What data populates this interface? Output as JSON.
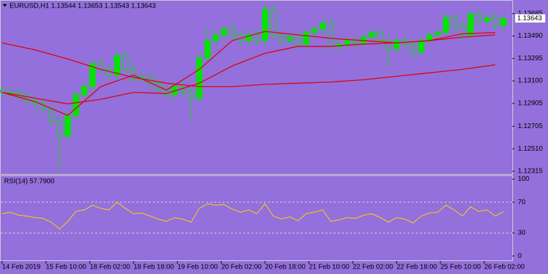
{
  "chart_data": [
    {
      "type": "candlestick",
      "title": "EURUSD,H1  1.13544 1.13653 1.13543 1.13643",
      "x": [
        0,
        3,
        6,
        9,
        12,
        15,
        18,
        21,
        24,
        27,
        30,
        33,
        36,
        39,
        42,
        45,
        48,
        51,
        54,
        57,
        60,
        63,
        66,
        69,
        72,
        75,
        78,
        81,
        84,
        87,
        90,
        93,
        96,
        99,
        102,
        105,
        108,
        111,
        114,
        117,
        120,
        123,
        126,
        129,
        132,
        135,
        138,
        141,
        144,
        147,
        150,
        153,
        156,
        159,
        162,
        165,
        168,
        171,
        174,
        177,
        180,
        183
      ],
      "open": [
        1.1302,
        1.13,
        1.13,
        1.1297,
        1.1293,
        1.129,
        1.1285,
        1.1275,
        1.1262,
        1.128,
        1.1298,
        1.1305,
        1.1325,
        1.132,
        1.1315,
        1.1332,
        1.132,
        1.1312,
        1.1313,
        1.1308,
        1.1303,
        1.1298,
        1.1305,
        1.13,
        1.1295,
        1.133,
        1.1345,
        1.135,
        1.1355,
        1.135,
        1.1345,
        1.135,
        1.1345,
        1.1372,
        1.135,
        1.1345,
        1.1348,
        1.1342,
        1.1352,
        1.1355,
        1.136,
        1.134,
        1.1342,
        1.1345,
        1.1343,
        1.1348,
        1.1352,
        1.1345,
        1.1338,
        1.1345,
        1.1342,
        1.1335,
        1.1345,
        1.135,
        1.1352,
        1.1365,
        1.1358,
        1.135,
        1.1368,
        1.1362,
        1.1365,
        1.1358
      ],
      "high": [
        1.1306,
        1.1304,
        1.1304,
        1.1301,
        1.1297,
        1.1294,
        1.1289,
        1.1279,
        1.1284,
        1.1302,
        1.1309,
        1.1329,
        1.1329,
        1.1324,
        1.1336,
        1.1336,
        1.1324,
        1.1317,
        1.1317,
        1.1312,
        1.1307,
        1.1309,
        1.1309,
        1.1304,
        1.1334,
        1.1356,
        1.1354,
        1.1359,
        1.1359,
        1.1354,
        1.1354,
        1.1354,
        1.1378,
        1.1376,
        1.1354,
        1.1352,
        1.1352,
        1.1356,
        1.1359,
        1.1364,
        1.1364,
        1.1346,
        1.1349,
        1.1349,
        1.1352,
        1.1356,
        1.1356,
        1.1349,
        1.1349,
        1.1349,
        1.1346,
        1.1349,
        1.1354,
        1.1356,
        1.1369,
        1.1369,
        1.1362,
        1.1372,
        1.1372,
        1.1369,
        1.1369,
        1.1368
      ],
      "low": [
        1.1296,
        1.1296,
        1.1293,
        1.1289,
        1.1286,
        1.1281,
        1.1271,
        1.1232,
        1.1258,
        1.1276,
        1.1294,
        1.1301,
        1.1316,
        1.1311,
        1.1311,
        1.1316,
        1.1308,
        1.1308,
        1.1304,
        1.1299,
        1.1294,
        1.1294,
        1.1296,
        1.1276,
        1.1291,
        1.1326,
        1.1341,
        1.1346,
        1.1346,
        1.1341,
        1.1341,
        1.1341,
        1.1341,
        1.1346,
        1.1341,
        1.1341,
        1.1338,
        1.1338,
        1.1348,
        1.1351,
        1.1336,
        1.1336,
        1.1338,
        1.1339,
        1.1339,
        1.1344,
        1.1341,
        1.1322,
        1.1334,
        1.1338,
        1.1331,
        1.1331,
        1.1341,
        1.1346,
        1.1348,
        1.1354,
        1.1346,
        1.1346,
        1.1358,
        1.1358,
        1.1354,
        1.1354
      ],
      "close": [
        1.13,
        1.13,
        1.1297,
        1.1293,
        1.129,
        1.1285,
        1.1275,
        1.1262,
        1.128,
        1.1298,
        1.1305,
        1.1325,
        1.132,
        1.1315,
        1.1332,
        1.132,
        1.1312,
        1.1313,
        1.1308,
        1.1303,
        1.1298,
        1.1305,
        1.13,
        1.1295,
        1.133,
        1.1345,
        1.135,
        1.1355,
        1.135,
        1.1345,
        1.135,
        1.1345,
        1.1372,
        1.135,
        1.1345,
        1.1348,
        1.1342,
        1.1352,
        1.1355,
        1.136,
        1.134,
        1.1342,
        1.1345,
        1.1343,
        1.1348,
        1.1352,
        1.1345,
        1.1338,
        1.1345,
        1.1342,
        1.1335,
        1.1345,
        1.135,
        1.1352,
        1.1365,
        1.1358,
        1.135,
        1.1368,
        1.1362,
        1.1365,
        1.1358,
        1.13643
      ],
      "color": "#00e400",
      "lines": [
        {
          "color": "#e00000",
          "x": [
            0,
            12,
            24,
            36,
            48,
            60,
            72,
            84,
            96,
            108,
            120,
            132,
            144,
            156,
            168,
            180
          ],
          "values": [
            1.1343,
            1.1337,
            1.1329,
            1.132,
            1.1313,
            1.1308,
            1.1305,
            1.1305,
            1.1307,
            1.1308,
            1.1309,
            1.1311,
            1.1314,
            1.1317,
            1.132,
            1.1324
          ]
        },
        {
          "color": "#e00000",
          "x": [
            0,
            12,
            24,
            36,
            48,
            60,
            72,
            84,
            96,
            108,
            120,
            132,
            144,
            156,
            168,
            180
          ],
          "values": [
            1.13,
            1.1295,
            1.129,
            1.1294,
            1.13,
            1.1299,
            1.1308,
            1.1323,
            1.1334,
            1.134,
            1.134,
            1.1342,
            1.1343,
            1.1345,
            1.1348,
            1.135
          ]
        },
        {
          "color": "#e00000",
          "x": [
            0,
            12,
            24,
            36,
            48,
            60,
            72,
            84,
            96,
            108,
            120,
            132,
            144,
            156,
            168,
            180
          ],
          "values": [
            1.13,
            1.1292,
            1.128,
            1.1305,
            1.1315,
            1.1302,
            1.132,
            1.1345,
            1.1353,
            1.135,
            1.1347,
            1.1345,
            1.1343,
            1.1345,
            1.1351,
            1.1352
          ]
        }
      ],
      "xlim": [
        -0.75,
        186.25
      ],
      "xticks": [
        {
          "value": 0,
          "label": "14 Feb 2019"
        },
        {
          "value": 16,
          "label": "15 Feb 10:00"
        },
        {
          "value": 32,
          "label": "18 Feb 02:00"
        },
        {
          "value": 48,
          "label": "18 Feb 18:00"
        },
        {
          "value": 64,
          "label": "19 Feb 10:00"
        },
        {
          "value": 80,
          "label": "20 Feb 02:00"
        },
        {
          "value": 96,
          "label": "20 Feb 18:00"
        },
        {
          "value": 112,
          "label": "21 Feb 10:00"
        },
        {
          "value": 128,
          "label": "22 Feb 02:00"
        },
        {
          "value": 144,
          "label": "22 Feb 18:00"
        },
        {
          "value": 160,
          "label": "25 Feb 10:00"
        },
        {
          "value": 176,
          "label": "26 Feb 02:00"
        }
      ],
      "ylim": [
        1.12285,
        1.13797
      ],
      "yticks": [
        1.13685,
        {
          "value": 1.1349,
          "label": "1.13490"
        },
        1.13295,
        {
          "value": 1.131,
          "label": "1.13100"
        },
        1.12905,
        1.12705,
        {
          "value": 1.1251,
          "label": "1.12510"
        },
        1.12315
      ]
    },
    {
      "type": "line",
      "title": "RSI(14) 57.7900",
      "x": [
        0,
        3,
        6,
        9,
        12,
        15,
        18,
        21,
        24,
        27,
        30,
        33,
        36,
        39,
        42,
        45,
        48,
        51,
        54,
        57,
        60,
        63,
        66,
        69,
        72,
        75,
        78,
        81,
        84,
        87,
        90,
        93,
        96,
        99,
        102,
        105,
        108,
        111,
        114,
        117,
        120,
        123,
        126,
        129,
        132,
        135,
        138,
        141,
        144,
        147,
        150,
        153,
        156,
        159,
        162,
        165,
        168,
        171,
        174,
        177,
        180,
        183
      ],
      "values": [
        55,
        57,
        53,
        52,
        50,
        49,
        44,
        35,
        45,
        58,
        60,
        66,
        62,
        60,
        70,
        62,
        55,
        56,
        52,
        48,
        45,
        50,
        48,
        44,
        62,
        68,
        66,
        67,
        61,
        57,
        60,
        55,
        68,
        52,
        48,
        51,
        46,
        55,
        57,
        60,
        45,
        47,
        50,
        49,
        53,
        55,
        50,
        44,
        50,
        48,
        43,
        52,
        56,
        57,
        66,
        60,
        52,
        64,
        58,
        60,
        52,
        57.79
      ],
      "color": "#ffd700",
      "xlim": [
        -0.75,
        186.25
      ],
      "ylim": [
        -10,
        104
      ],
      "yticks": [
        100,
        70,
        30,
        0
      ],
      "levels": [
        70,
        30
      ]
    }
  ]
}
